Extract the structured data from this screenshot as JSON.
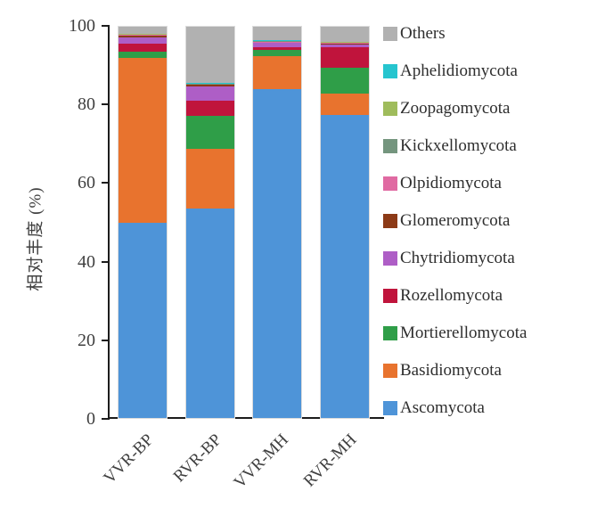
{
  "figure": {
    "y_axis_label": "相对丰度 (%)"
  },
  "chart_data": {
    "type": "bar",
    "stacked": true,
    "title": "",
    "xlabel": "",
    "ylabel": "相对丰度 (%)",
    "ylim": [
      0,
      100
    ],
    "y_ticks": [
      0,
      20,
      40,
      60,
      80,
      100
    ],
    "grid": false,
    "legend_position": "right",
    "legend_order_top_to_bottom": [
      "Others",
      "Aphelidiomycota",
      "Zoopagomycota",
      "Kickxellomycota",
      "Olpidiomycota",
      "Glomeromycota",
      "Chytridiomycota",
      "Rozellomycota",
      "Mortierellomycota",
      "Basidiomycota",
      "Ascomycota"
    ],
    "categories": [
      "VVR-BP",
      "RVR-BP",
      "VVR-MH",
      "RVR-MH"
    ],
    "series": [
      {
        "name": "Ascomycota",
        "color": "#4E94D8",
        "values": [
          50.0,
          53.5,
          84.0,
          77.5
        ]
      },
      {
        "name": "Basidiomycota",
        "color": "#E8732E",
        "values": [
          42.1,
          15.2,
          8.6,
          5.5
        ]
      },
      {
        "name": "Mortierellomycota",
        "color": "#2F9E48",
        "values": [
          1.6,
          8.5,
          1.4,
          6.6
        ]
      },
      {
        "name": "Rozellomycota",
        "color": "#C0143C",
        "values": [
          2.0,
          4.0,
          0.7,
          5.1
        ]
      },
      {
        "name": "Chytridiomycota",
        "color": "#AE5EC6",
        "values": [
          1.6,
          3.5,
          1.1,
          0.8
        ]
      },
      {
        "name": "Glomeromycota",
        "color": "#8C3A17",
        "values": [
          0.4,
          0.4,
          0.2,
          0.2
        ]
      },
      {
        "name": "Olpidiomycota",
        "color": "#E06AA2",
        "values": [
          0.2,
          0.2,
          0.2,
          0.2
        ]
      },
      {
        "name": "Kickxellomycota",
        "color": "#74957E",
        "values": [
          0.1,
          0.1,
          0.1,
          0.1
        ]
      },
      {
        "name": "Zoopagomycota",
        "color": "#9FBC5C",
        "values": [
          0.1,
          0.1,
          0.1,
          0.1
        ]
      },
      {
        "name": "Aphelidiomycota",
        "color": "#26C5CF",
        "values": [
          0.1,
          0.1,
          0.1,
          0.1
        ]
      },
      {
        "name": "Others",
        "color": "#B1B1B1",
        "values": [
          1.8,
          14.4,
          3.5,
          3.8
        ]
      }
    ]
  }
}
